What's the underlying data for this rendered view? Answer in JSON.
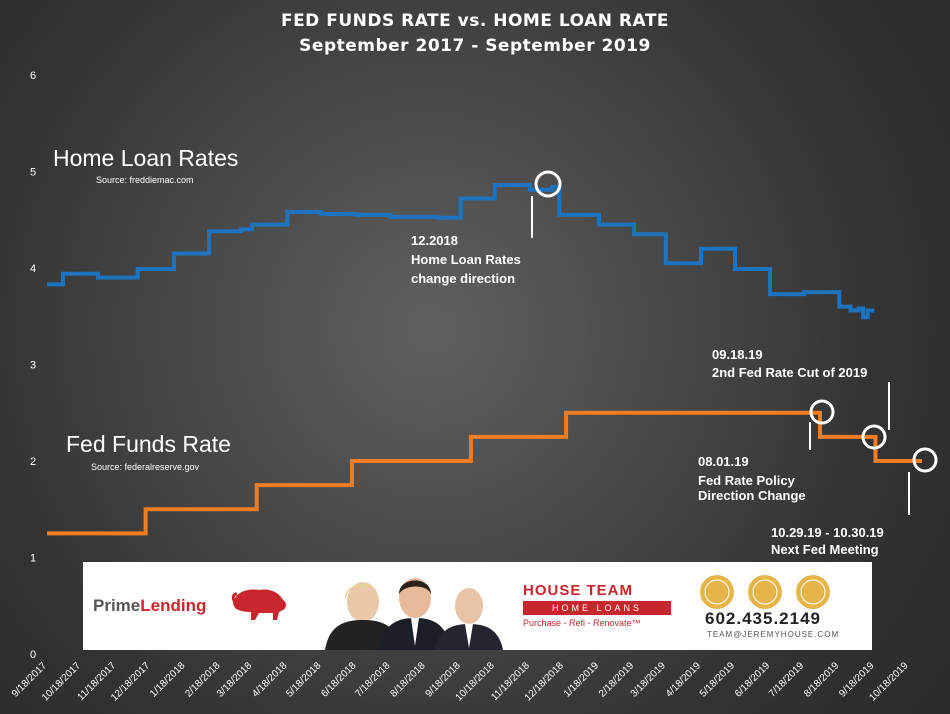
{
  "chart_data": {
    "type": "line",
    "title": "FED FUNDS RATE vs. HOME LOAN RATE",
    "subtitle": "September 2017 - September 2019",
    "xlabel": "",
    "ylabel": "",
    "ylim": [
      0,
      6
    ],
    "yticks": [
      "0",
      "1",
      "2",
      "3",
      "4",
      "5",
      "6"
    ],
    "x_tick_labels": [
      "9/18/2017",
      "10/18/2017",
      "11/18/2017",
      "12/18/2017",
      "1/18/2018",
      "2/18/2018",
      "3/18/2018",
      "4/18/2018",
      "5/18/2018",
      "6/18/2018",
      "7/18/2018",
      "8/18/2018",
      "9/18/2018",
      "10/18/2018",
      "11/18/2018",
      "12/18/2018",
      "1/18/2019",
      "2/18/2019",
      "3/18/2019",
      "4/18/2019",
      "5/18/2019",
      "6/18/2019",
      "7/18/2019",
      "8/18/2019",
      "9/18/2019",
      "10/18/2019"
    ],
    "grid": false,
    "series": [
      {
        "name": "Home Loan Rates",
        "source_label": "Source: freddiemac.com",
        "color": "#1e73be",
        "steps": [
          [
            "9/18/2017",
            3.83
          ],
          [
            "10/2/2017",
            3.94
          ],
          [
            "11/2/2017",
            3.9
          ],
          [
            "12/7/2017",
            3.99
          ],
          [
            "1/8/2018",
            4.15
          ],
          [
            "2/8/2018",
            4.38
          ],
          [
            "3/8/2018",
            4.4
          ],
          [
            "3/18/2018",
            4.45
          ],
          [
            "4/18/2018",
            4.58
          ],
          [
            "5/18/2018",
            4.56
          ],
          [
            "6/18/2018",
            4.55
          ],
          [
            "7/18/2018",
            4.53
          ],
          [
            "8/28/2018",
            4.52
          ],
          [
            "9/18/2018",
            4.72
          ],
          [
            "10/18/2018",
            4.86
          ],
          [
            "11/18/2018",
            4.81
          ],
          [
            "12/8/2018",
            4.84
          ],
          [
            "12/14/2018",
            4.55
          ],
          [
            "1/18/2019",
            4.45
          ],
          [
            "2/18/2019",
            4.35
          ],
          [
            "3/18/2019",
            4.05
          ],
          [
            "4/18/2019",
            4.2
          ],
          [
            "5/18/2019",
            3.99
          ],
          [
            "6/18/2019",
            3.73
          ],
          [
            "7/18/2019",
            3.75
          ],
          [
            "8/18/2019",
            3.6
          ],
          [
            "8/28/2019",
            3.56
          ],
          [
            "9/4/2019",
            3.58
          ],
          [
            "9/8/2019",
            3.49
          ],
          [
            "9/12/2019",
            3.56
          ],
          [
            "9/18/2019",
            3.56
          ]
        ]
      },
      {
        "name": "Fed Funds Rate",
        "source_label": "Source: federalreserve.gov",
        "color": "#f07d22",
        "steps": [
          [
            "9/18/2017",
            1.25
          ],
          [
            "12/14/2017",
            1.5
          ],
          [
            "3/22/2018",
            1.75
          ],
          [
            "6/14/2018",
            2.0
          ],
          [
            "9/27/2018",
            2.25
          ],
          [
            "12/20/2018",
            2.5
          ],
          [
            "8/1/2019",
            2.25
          ],
          [
            "9/19/2019",
            2.0
          ],
          [
            "10/30/2019",
            2.0
          ]
        ]
      }
    ],
    "annotations": [
      {
        "lines": [
          "12.2018",
          "Home Loan Rates",
          "change direction"
        ]
      },
      {
        "lines": [
          "09.18.19",
          "2nd Fed Rate Cut of 2019"
        ]
      },
      {
        "lines": [
          "08.01.19",
          "Fed Rate Policy",
          "Direction Change"
        ]
      },
      {
        "lines": [
          "10.29.19 - 10.30.19",
          "Next Fed Meeting"
        ]
      }
    ]
  },
  "banner": {
    "lender_name_a": "Prime",
    "lender_name_b": "Lending",
    "team_name": "HOUSE TEAM",
    "team_sub": "HOME LOANS",
    "team_tagline": "Purchase - Refi - Renovate™",
    "phone": "602.435.2149",
    "email": "TEAM@JEREMYHOUSE.COM"
  }
}
